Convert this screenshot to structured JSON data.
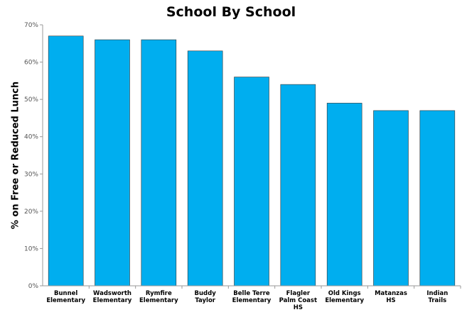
{
  "chart_data": {
    "type": "bar",
    "title": "School By School",
    "xlabel": "",
    "ylabel": "% on Free or Reduced Lunch",
    "ylim": [
      0,
      70
    ],
    "yticks": [
      "0%",
      "10%",
      "20%",
      "30%",
      "40%",
      "50%",
      "60%",
      "70%"
    ],
    "grid": false,
    "categories": [
      [
        "Bunnel",
        "Elementary"
      ],
      [
        "Wadsworth",
        "Elementary"
      ],
      [
        "Rymfire",
        "Elementary"
      ],
      [
        "Buddy",
        "Taylor"
      ],
      [
        "Belle Terre",
        "Elementary"
      ],
      [
        "Flagler",
        "Palm Coast",
        "HS"
      ],
      [
        "Old Kings",
        "Elementary"
      ],
      [
        "Matanzas",
        "HS"
      ],
      [
        "Indian",
        "Trails"
      ]
    ],
    "values": [
      67,
      66,
      66,
      63,
      56,
      54,
      49,
      47,
      47
    ],
    "colors": {
      "bar": "#00aeef",
      "bar_outline": "#333333",
      "axis": "#999999"
    }
  }
}
